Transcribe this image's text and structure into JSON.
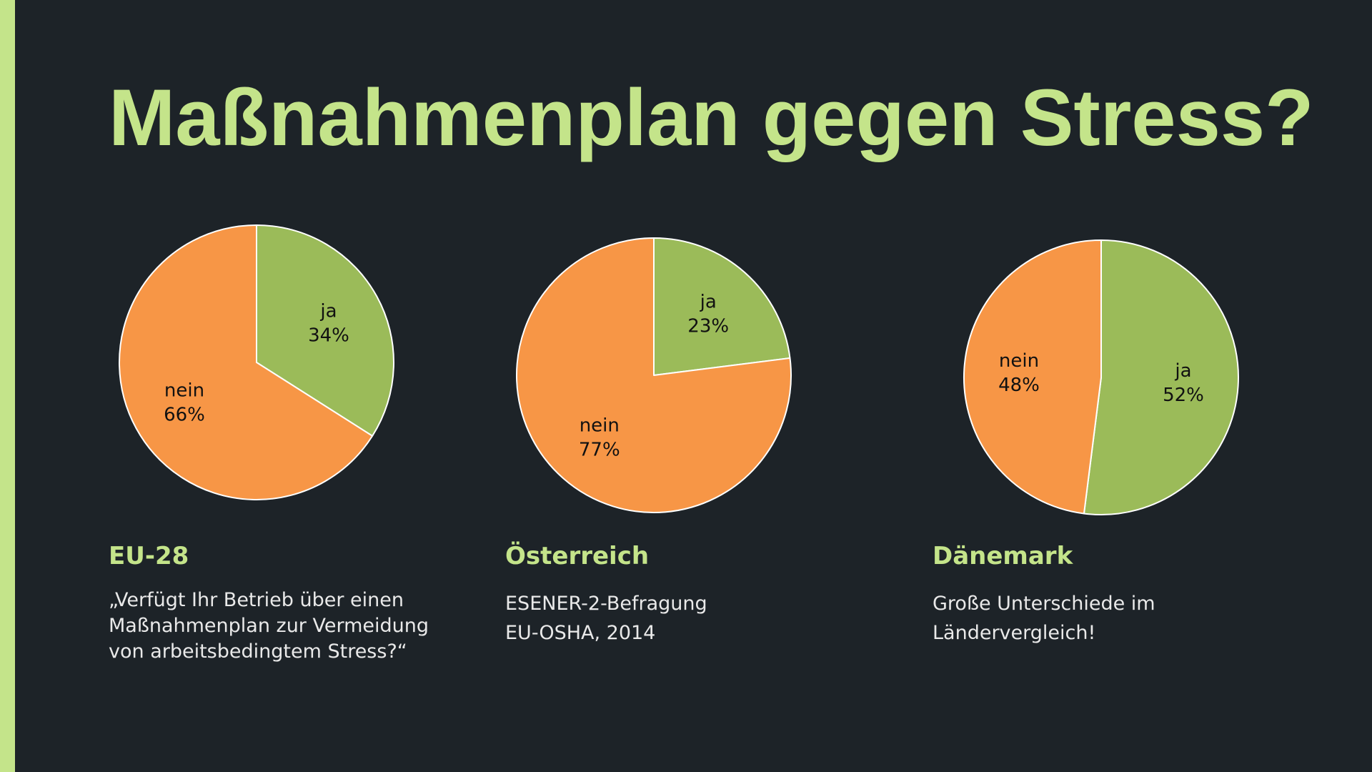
{
  "title": "Maßnahmenplan gegen Stress?",
  "colors": {
    "background": "#1d2328",
    "accent": "#c4e48a",
    "ja": "#9bbb59",
    "nein": "#f79646",
    "text": "#e9e9e9"
  },
  "chart_data": [
    {
      "type": "pie",
      "title": "EU-28",
      "slices": [
        {
          "label": "ja",
          "value": 34,
          "display": "34%",
          "color": "#9bbb59"
        },
        {
          "label": "nein",
          "value": 66,
          "display": "66%",
          "color": "#f79646"
        }
      ]
    },
    {
      "type": "pie",
      "title": "Österreich",
      "slices": [
        {
          "label": "ja",
          "value": 23,
          "display": "23%",
          "color": "#9bbb59"
        },
        {
          "label": "nein",
          "value": 77,
          "display": "77%",
          "color": "#f79646"
        }
      ]
    },
    {
      "type": "pie",
      "title": "Dänemark",
      "slices": [
        {
          "label": "ja",
          "value": 52,
          "display": "52%",
          "color": "#9bbb59"
        },
        {
          "label": "nein",
          "value": 48,
          "display": "48%",
          "color": "#f79646"
        }
      ]
    }
  ],
  "panels": [
    {
      "heading": "EU-28",
      "lines": [
        "„Verfügt Ihr Betrieb über einen",
        "Maßnahmenplan zur Vermeidung",
        "von arbeitsbedingtem Stress?“"
      ]
    },
    {
      "heading": "Österreich",
      "lines": [
        "ESENER-2-Befragung",
        "EU-OSHA, 2014"
      ]
    },
    {
      "heading": "Dänemark",
      "lines": [
        "Große Unterschiede im",
        "Ländervergleich!"
      ]
    }
  ]
}
